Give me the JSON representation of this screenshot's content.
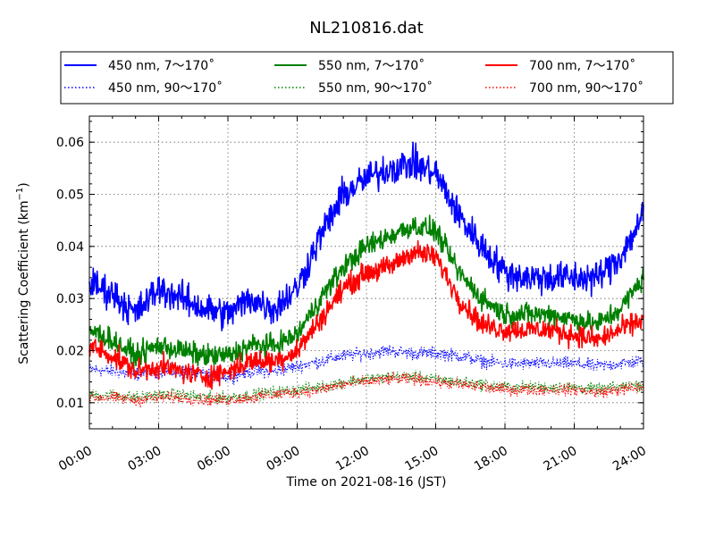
{
  "chart_data": {
    "type": "line",
    "title": "NL210816.dat",
    "xlabel": "Time on 2021-08-16 (JST)",
    "ylabel": "Scattering Coefficient (km",
    "ylabel_sup": "−1",
    "ylabel_end": ")",
    "xlim": [
      "00:00",
      "24:00"
    ],
    "ylim": [
      0.005,
      0.065
    ],
    "grid": true,
    "legend_position": "top",
    "x_ticks": [
      "00:00",
      "03:00",
      "06:00",
      "09:00",
      "12:00",
      "15:00",
      "18:00",
      "21:00",
      "24:00"
    ],
    "y_ticks": [
      "0.01",
      "0.02",
      "0.03",
      "0.04",
      "0.05",
      "0.06"
    ],
    "x_hours": [
      0,
      1,
      2,
      3,
      4,
      5,
      6,
      7,
      8,
      9,
      10,
      11,
      12,
      13,
      14,
      15,
      16,
      17,
      18,
      19,
      20,
      21,
      22,
      23,
      24
    ],
    "series": [
      {
        "name": "450 nm, 7～170˚",
        "color": "#0000ff",
        "style": "solid",
        "noise": 0.0022,
        "values": [
          0.033,
          0.031,
          0.027,
          0.032,
          0.03,
          0.028,
          0.027,
          0.03,
          0.028,
          0.032,
          0.042,
          0.05,
          0.053,
          0.055,
          0.056,
          0.054,
          0.046,
          0.04,
          0.035,
          0.034,
          0.034,
          0.034,
          0.034,
          0.038,
          0.046
        ]
      },
      {
        "name": "450 nm, 90～170˚",
        "color": "#0000ff",
        "style": "dotted",
        "noise": 0.0009,
        "values": [
          0.0165,
          0.016,
          0.0155,
          0.016,
          0.016,
          0.0155,
          0.015,
          0.016,
          0.016,
          0.017,
          0.018,
          0.019,
          0.0195,
          0.02,
          0.0195,
          0.0195,
          0.019,
          0.018,
          0.0175,
          0.0175,
          0.0175,
          0.0175,
          0.017,
          0.0175,
          0.018
        ]
      },
      {
        "name": "550 nm, 7～170˚",
        "color": "#008000",
        "style": "solid",
        "noise": 0.0015,
        "values": [
          0.024,
          0.022,
          0.019,
          0.021,
          0.02,
          0.019,
          0.019,
          0.021,
          0.021,
          0.023,
          0.03,
          0.036,
          0.04,
          0.042,
          0.044,
          0.043,
          0.035,
          0.03,
          0.027,
          0.027,
          0.027,
          0.026,
          0.025,
          0.028,
          0.034
        ]
      },
      {
        "name": "550 nm, 90～170˚",
        "color": "#008000",
        "style": "dotted",
        "noise": 0.0008,
        "values": [
          0.0115,
          0.0115,
          0.011,
          0.0115,
          0.0115,
          0.011,
          0.011,
          0.0115,
          0.012,
          0.0125,
          0.013,
          0.014,
          0.0145,
          0.015,
          0.015,
          0.0145,
          0.014,
          0.0135,
          0.013,
          0.013,
          0.013,
          0.013,
          0.0125,
          0.013,
          0.0135
        ]
      },
      {
        "name": "700 nm, 7～170˚",
        "color": "#ff0000",
        "style": "solid",
        "noise": 0.0015,
        "values": [
          0.021,
          0.019,
          0.016,
          0.017,
          0.016,
          0.015,
          0.016,
          0.018,
          0.018,
          0.02,
          0.026,
          0.032,
          0.035,
          0.036,
          0.039,
          0.038,
          0.03,
          0.025,
          0.024,
          0.024,
          0.024,
          0.023,
          0.022,
          0.024,
          0.026
        ]
      },
      {
        "name": "700 nm, 90～170˚",
        "color": "#ff0000",
        "style": "dotted",
        "noise": 0.0008,
        "values": [
          0.011,
          0.011,
          0.0105,
          0.011,
          0.011,
          0.0105,
          0.0105,
          0.011,
          0.0115,
          0.012,
          0.0125,
          0.0135,
          0.014,
          0.0145,
          0.0145,
          0.014,
          0.0135,
          0.013,
          0.0125,
          0.0125,
          0.0125,
          0.0125,
          0.012,
          0.0125,
          0.013
        ]
      }
    ]
  }
}
